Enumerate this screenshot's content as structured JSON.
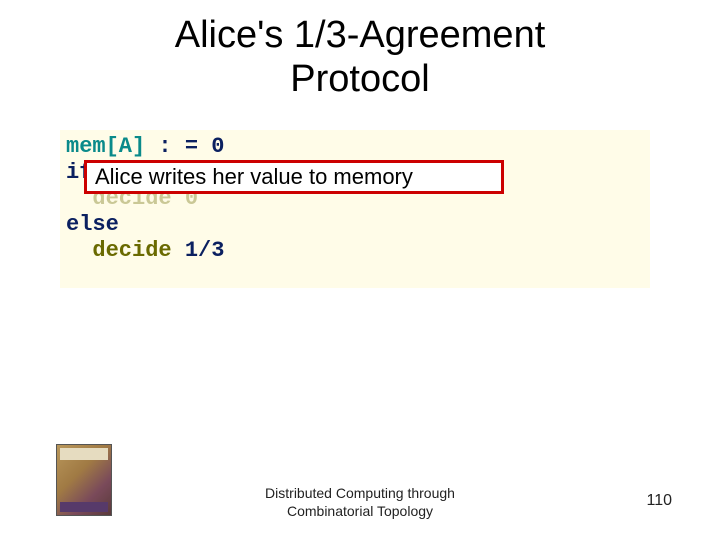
{
  "title": {
    "line1": "Alice's 1/3-Agreement",
    "line2": "Protocol",
    "fontsize": 38,
    "color": "#000000"
  },
  "codebox": {
    "background_color": "#fffce8",
    "font_family": "Courier New",
    "fontsize": 22,
    "lines": {
      "l1a": "mem[A]",
      "l1b": " : = 0",
      "l2a": "if",
      "l3_indent": "  ",
      "l3_faded": "decide 0",
      "l4": "else",
      "l5_indent": "  ",
      "l5a": "decide",
      "l5b": " 1/3"
    },
    "colors": {
      "teal": "#0a8a8a",
      "navy": "#0b2060",
      "olive": "#6a6a00"
    }
  },
  "overlay": {
    "text": "Alice writes her value to memory",
    "border_color": "#cc0000",
    "background_color": "#ffffff",
    "fontsize": 22
  },
  "footer": {
    "line1": "Distributed Computing through",
    "line2": "Combinatorial Topology",
    "fontsize": 14
  },
  "pagenum": "110",
  "book_thumb": {
    "name": "book-cover-icon"
  }
}
